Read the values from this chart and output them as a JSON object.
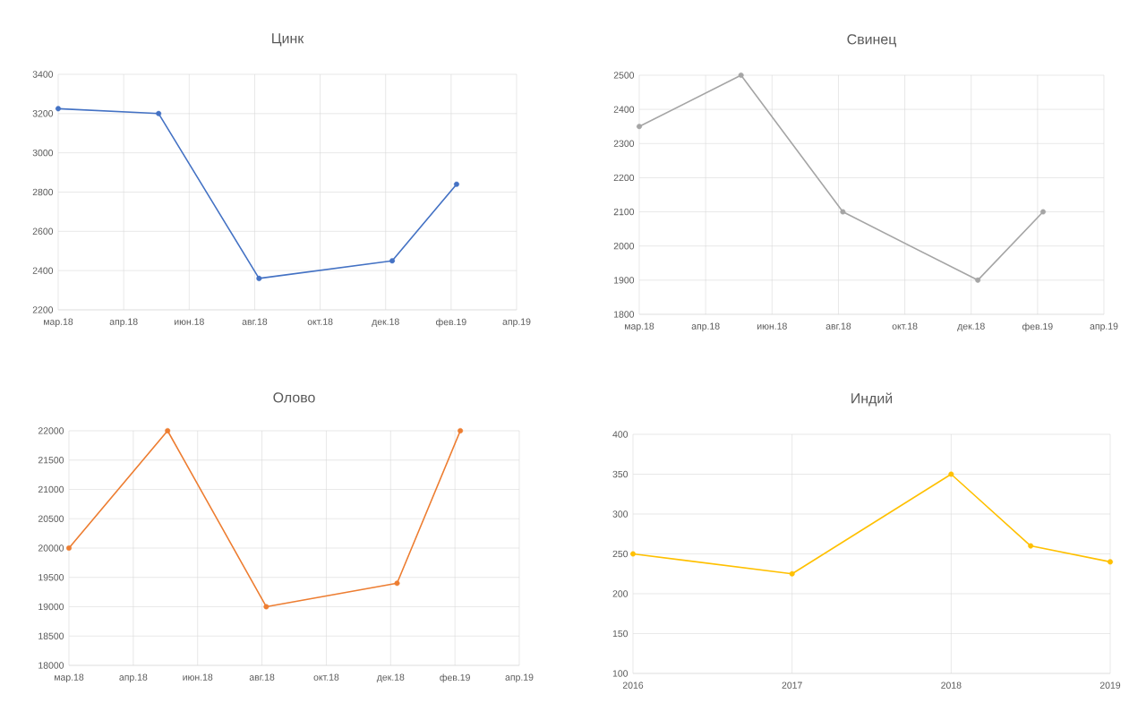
{
  "chart_data": [
    {
      "type": "line",
      "title": "Цинк",
      "color": "#4472c4",
      "marker": "circle",
      "grid": true,
      "x": [
        "2018-03-01",
        "2018-06-01",
        "2018-09-01",
        "2019-01-01",
        "2019-03-01"
      ],
      "values": [
        3225,
        3200,
        2360,
        2450,
        2840
      ],
      "xlim": [
        "2018-03-01",
        "2019-04-25"
      ],
      "ylim": [
        2200,
        3400
      ],
      "xticks": [
        {
          "value": "2018-03-01",
          "label": "мар.18"
        },
        {
          "value": "2018-04-30",
          "label": "апр.18"
        },
        {
          "value": "2018-06-29",
          "label": "июн.18"
        },
        {
          "value": "2018-08-28",
          "label": "авг.18"
        },
        {
          "value": "2018-10-27",
          "label": "окт.18"
        },
        {
          "value": "2018-12-26",
          "label": "дек.18"
        },
        {
          "value": "2019-02-24",
          "label": "фев.19"
        },
        {
          "value": "2019-04-25",
          "label": "апр.19"
        }
      ],
      "yticks": [
        2200,
        2400,
        2600,
        2800,
        3000,
        3200,
        3400
      ]
    },
    {
      "type": "line",
      "title": "Свинец",
      "color": "#a5a5a5",
      "marker": "circle",
      "grid": true,
      "x": [
        "2018-03-01",
        "2018-06-01",
        "2018-09-01",
        "2019-01-01",
        "2019-03-01"
      ],
      "values": [
        2350,
        2500,
        2100,
        1900,
        2100
      ],
      "xlim": [
        "2018-03-01",
        "2019-04-25"
      ],
      "ylim": [
        1800,
        2500
      ],
      "xticks": [
        {
          "value": "2018-03-01",
          "label": "мар.18"
        },
        {
          "value": "2018-04-30",
          "label": "апр.18"
        },
        {
          "value": "2018-06-29",
          "label": "июн.18"
        },
        {
          "value": "2018-08-28",
          "label": "авг.18"
        },
        {
          "value": "2018-10-27",
          "label": "окт.18"
        },
        {
          "value": "2018-12-26",
          "label": "дек.18"
        },
        {
          "value": "2019-02-24",
          "label": "фев.19"
        },
        {
          "value": "2019-04-25",
          "label": "апр.19"
        }
      ],
      "yticks": [
        1800,
        1900,
        2000,
        2100,
        2200,
        2300,
        2400,
        2500
      ]
    },
    {
      "type": "line",
      "title": "Олово",
      "color": "#ed7d31",
      "marker": "circle",
      "grid": true,
      "x": [
        "2018-03-01",
        "2018-06-01",
        "2018-09-01",
        "2019-01-01",
        "2019-03-01"
      ],
      "values": [
        20000,
        22000,
        19000,
        19400,
        22000
      ],
      "xlim": [
        "2018-03-01",
        "2019-04-25"
      ],
      "ylim": [
        18000,
        22000
      ],
      "xticks": [
        {
          "value": "2018-03-01",
          "label": "мар.18"
        },
        {
          "value": "2018-04-30",
          "label": "апр.18"
        },
        {
          "value": "2018-06-29",
          "label": "июн.18"
        },
        {
          "value": "2018-08-28",
          "label": "авг.18"
        },
        {
          "value": "2018-10-27",
          "label": "окт.18"
        },
        {
          "value": "2018-12-26",
          "label": "дек.18"
        },
        {
          "value": "2019-02-24",
          "label": "фев.19"
        },
        {
          "value": "2019-04-25",
          "label": "апр.19"
        }
      ],
      "yticks": [
        18000,
        18500,
        19000,
        19500,
        20000,
        20500,
        21000,
        21500,
        22000
      ]
    },
    {
      "type": "line",
      "title": "Индий",
      "color": "#ffc000",
      "marker": "circle",
      "grid": true,
      "x": [
        2016,
        2017,
        2018,
        2018.5,
        2019
      ],
      "values": [
        250,
        225,
        350,
        260,
        240
      ],
      "xlim": [
        2016,
        2019
      ],
      "ylim": [
        100,
        400
      ],
      "xticks": [
        2016,
        2017,
        2018,
        2019
      ],
      "yticks": [
        100,
        150,
        200,
        250,
        300,
        350,
        400
      ]
    }
  ]
}
